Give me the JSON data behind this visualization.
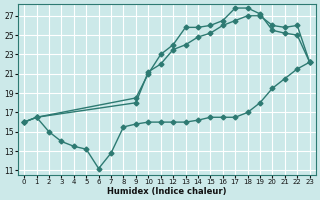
{
  "xlabel": "Humidex (Indice chaleur)",
  "bg_color": "#cce9e9",
  "grid_color": "#ffffff",
  "line_color": "#2d7a72",
  "xlim": [
    -0.5,
    23.5
  ],
  "ylim": [
    10.5,
    28.2
  ],
  "xticks": [
    0,
    1,
    2,
    3,
    4,
    5,
    6,
    7,
    8,
    9,
    10,
    11,
    12,
    13,
    14,
    15,
    16,
    17,
    18,
    19,
    20,
    21,
    22,
    23
  ],
  "yticks": [
    11,
    13,
    15,
    17,
    19,
    21,
    23,
    25,
    27
  ],
  "line1_x": [
    0,
    1,
    2,
    3,
    4,
    5,
    6,
    7,
    8,
    9,
    10,
    11,
    12,
    13,
    14,
    15,
    16,
    17,
    18,
    19,
    20,
    21,
    22,
    23
  ],
  "line1_y": [
    16.0,
    16.5,
    15.0,
    14.0,
    13.5,
    13.2,
    11.2,
    12.8,
    15.5,
    15.8,
    16.0,
    16.0,
    16.0,
    16.0,
    16.2,
    16.5,
    16.5,
    16.5,
    17.0,
    18.0,
    19.5,
    20.5,
    21.5,
    22.2
  ],
  "line2_x": [
    0,
    1,
    9,
    10,
    11,
    12,
    13,
    14,
    15,
    16,
    17,
    18,
    19,
    20,
    21,
    22,
    23
  ],
  "line2_y": [
    16.0,
    16.5,
    18.5,
    21.0,
    23.0,
    24.0,
    25.8,
    25.8,
    26.0,
    26.5,
    27.8,
    27.8,
    27.2,
    25.5,
    25.2,
    25.0,
    22.2
  ],
  "line3_x": [
    0,
    1,
    9,
    10,
    11,
    12,
    13,
    14,
    15,
    16,
    17,
    18,
    19,
    20,
    21,
    22,
    23
  ],
  "line3_y": [
    16.0,
    16.5,
    18.0,
    21.2,
    22.0,
    23.5,
    24.0,
    24.8,
    25.2,
    26.0,
    26.5,
    27.0,
    27.0,
    26.0,
    25.8,
    26.0,
    22.2
  ],
  "marker": "D",
  "markersize": 2.5,
  "linewidth": 1.0
}
